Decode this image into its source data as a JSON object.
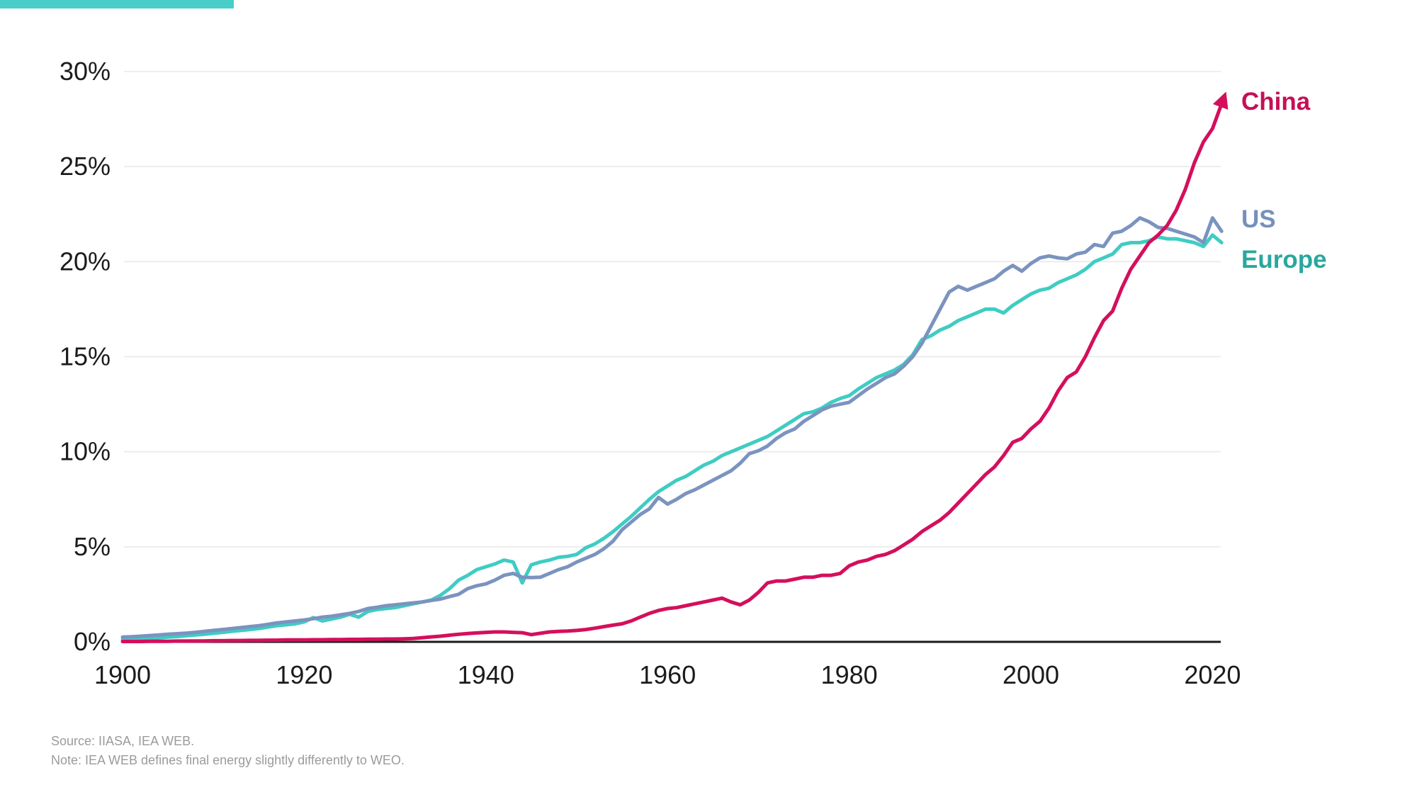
{
  "accent": {
    "top_bar_color": "#48cdc9"
  },
  "footer": {
    "source_line": "Source: IIASA, IEA WEB.",
    "note_line": "Note: IEA WEB defines final energy slightly differently to WEO."
  },
  "chart_data": {
    "type": "line",
    "title": "",
    "xlabel": "",
    "ylabel": "",
    "grid": "horizontal",
    "legend_position": "right-of-line-ends",
    "xlim": [
      1900,
      2021
    ],
    "ylim": [
      0,
      30
    ],
    "x_ticks": [
      1900,
      1920,
      1940,
      1960,
      1980,
      2000,
      2020
    ],
    "y_ticks": [
      {
        "value": 0,
        "label": "0%"
      },
      {
        "value": 5,
        "label": "5%"
      },
      {
        "value": 10,
        "label": "10%"
      },
      {
        "value": 15,
        "label": "15%"
      },
      {
        "value": 20,
        "label": "20%"
      },
      {
        "value": 25,
        "label": "25%"
      },
      {
        "value": 30,
        "label": "30%"
      }
    ],
    "years": [
      1900,
      1901,
      1902,
      1903,
      1904,
      1905,
      1906,
      1907,
      1908,
      1909,
      1910,
      1911,
      1912,
      1913,
      1914,
      1915,
      1916,
      1917,
      1918,
      1919,
      1920,
      1921,
      1922,
      1923,
      1924,
      1925,
      1926,
      1927,
      1928,
      1929,
      1930,
      1931,
      1932,
      1933,
      1934,
      1935,
      1936,
      1937,
      1938,
      1939,
      1940,
      1941,
      1942,
      1943,
      1944,
      1945,
      1946,
      1947,
      1948,
      1949,
      1950,
      1951,
      1952,
      1953,
      1954,
      1955,
      1956,
      1957,
      1958,
      1959,
      1960,
      1961,
      1962,
      1963,
      1964,
      1965,
      1966,
      1967,
      1968,
      1969,
      1970,
      1971,
      1972,
      1973,
      1974,
      1975,
      1976,
      1977,
      1978,
      1979,
      1980,
      1981,
      1982,
      1983,
      1984,
      1985,
      1986,
      1987,
      1988,
      1989,
      1990,
      1991,
      1992,
      1993,
      1994,
      1995,
      1996,
      1997,
      1998,
      1999,
      2000,
      2001,
      2002,
      2003,
      2004,
      2005,
      2006,
      2007,
      2008,
      2009,
      2010,
      2011,
      2012,
      2013,
      2014,
      2015,
      2016,
      2017,
      2018,
      2019,
      2020,
      2021
    ],
    "series": [
      {
        "name": "China",
        "color": "#d40f5c",
        "label_color": "#c60f56",
        "arrow_end": true,
        "values": [
          0.02,
          0.02,
          0.02,
          0.03,
          0.03,
          0.03,
          0.04,
          0.04,
          0.05,
          0.05,
          0.06,
          0.06,
          0.07,
          0.07,
          0.08,
          0.08,
          0.09,
          0.09,
          0.1,
          0.1,
          0.1,
          0.11,
          0.11,
          0.12,
          0.12,
          0.13,
          0.13,
          0.14,
          0.14,
          0.15,
          0.15,
          0.16,
          0.18,
          0.22,
          0.26,
          0.3,
          0.35,
          0.4,
          0.44,
          0.47,
          0.5,
          0.52,
          0.52,
          0.5,
          0.48,
          0.38,
          0.45,
          0.52,
          0.55,
          0.57,
          0.6,
          0.65,
          0.72,
          0.8,
          0.88,
          0.95,
          1.1,
          1.3,
          1.5,
          1.65,
          1.75,
          1.8,
          1.9,
          2.0,
          2.1,
          2.2,
          2.3,
          2.1,
          1.95,
          2.2,
          2.6,
          3.1,
          3.2,
          3.2,
          3.3,
          3.4,
          3.4,
          3.5,
          3.5,
          3.6,
          4.0,
          4.2,
          4.3,
          4.5,
          4.6,
          4.8,
          5.1,
          5.4,
          5.8,
          6.1,
          6.4,
          6.8,
          7.3,
          7.8,
          8.3,
          8.8,
          9.2,
          9.8,
          10.5,
          10.7,
          11.2,
          11.6,
          12.3,
          13.2,
          13.9,
          14.2,
          15.0,
          16.0,
          16.9,
          17.4,
          18.6,
          19.6,
          20.3,
          21.0,
          21.4,
          21.9,
          22.7,
          23.8,
          25.2,
          26.3,
          27.0,
          28.3
        ]
      },
      {
        "name": "US",
        "color": "#7b93bf",
        "label_color": "#7590bc",
        "arrow_end": false,
        "values": [
          0.25,
          0.27,
          0.3,
          0.33,
          0.36,
          0.4,
          0.43,
          0.46,
          0.5,
          0.55,
          0.6,
          0.65,
          0.7,
          0.75,
          0.8,
          0.85,
          0.92,
          1.0,
          1.05,
          1.1,
          1.15,
          1.22,
          1.3,
          1.35,
          1.42,
          1.5,
          1.6,
          1.75,
          1.82,
          1.9,
          1.95,
          2.0,
          2.05,
          2.1,
          2.18,
          2.25,
          2.38,
          2.5,
          2.8,
          2.95,
          3.05,
          3.25,
          3.5,
          3.6,
          3.4,
          3.38,
          3.4,
          3.6,
          3.8,
          3.95,
          4.2,
          4.4,
          4.6,
          4.9,
          5.3,
          5.9,
          6.3,
          6.7,
          7.0,
          7.6,
          7.25,
          7.5,
          7.8,
          8.0,
          8.25,
          8.5,
          8.75,
          9.0,
          9.4,
          9.9,
          10.05,
          10.3,
          10.7,
          11.0,
          11.2,
          11.6,
          11.9,
          12.2,
          12.4,
          12.5,
          12.6,
          12.95,
          13.3,
          13.6,
          13.9,
          14.1,
          14.5,
          15.0,
          15.7,
          16.6,
          17.5,
          18.4,
          18.7,
          18.5,
          18.7,
          18.9,
          19.1,
          19.5,
          19.8,
          19.5,
          19.9,
          20.2,
          20.3,
          20.2,
          20.15,
          20.4,
          20.5,
          20.9,
          20.8,
          21.5,
          21.6,
          21.9,
          22.3,
          22.1,
          21.8,
          21.75,
          21.6,
          21.45,
          21.3,
          21.0,
          22.3,
          21.6
        ]
      },
      {
        "name": "Europe",
        "color": "#3fccc3",
        "label_color": "#29a79e",
        "arrow_end": false,
        "values": [
          0.12,
          0.14,
          0.16,
          0.18,
          0.21,
          0.25,
          0.28,
          0.32,
          0.36,
          0.4,
          0.45,
          0.5,
          0.55,
          0.6,
          0.65,
          0.7,
          0.78,
          0.85,
          0.9,
          0.95,
          1.05,
          1.28,
          1.1,
          1.2,
          1.3,
          1.45,
          1.3,
          1.6,
          1.7,
          1.75,
          1.8,
          1.9,
          2.0,
          2.1,
          2.2,
          2.45,
          2.8,
          3.25,
          3.5,
          3.8,
          3.95,
          4.1,
          4.3,
          4.2,
          3.1,
          4.05,
          4.2,
          4.3,
          4.45,
          4.5,
          4.6,
          4.95,
          5.15,
          5.45,
          5.8,
          6.2,
          6.6,
          7.05,
          7.5,
          7.9,
          8.2,
          8.5,
          8.7,
          9.0,
          9.3,
          9.5,
          9.8,
          10.0,
          10.2,
          10.4,
          10.6,
          10.8,
          11.1,
          11.4,
          11.7,
          12.0,
          12.1,
          12.3,
          12.6,
          12.8,
          12.95,
          13.3,
          13.6,
          13.9,
          14.1,
          14.3,
          14.6,
          15.1,
          15.9,
          16.1,
          16.4,
          16.6,
          16.9,
          17.1,
          17.3,
          17.5,
          17.5,
          17.3,
          17.7,
          18.0,
          18.3,
          18.5,
          18.6,
          18.9,
          19.1,
          19.3,
          19.6,
          20.0,
          20.2,
          20.4,
          20.9,
          21.0,
          21.0,
          21.1,
          21.3,
          21.2,
          21.2,
          21.1,
          21.0,
          20.8,
          21.4,
          21.0
        ]
      }
    ],
    "style": {
      "grid_color": "#e8e8e8",
      "axis_color": "#1a1a1a",
      "line_width": 5
    }
  }
}
